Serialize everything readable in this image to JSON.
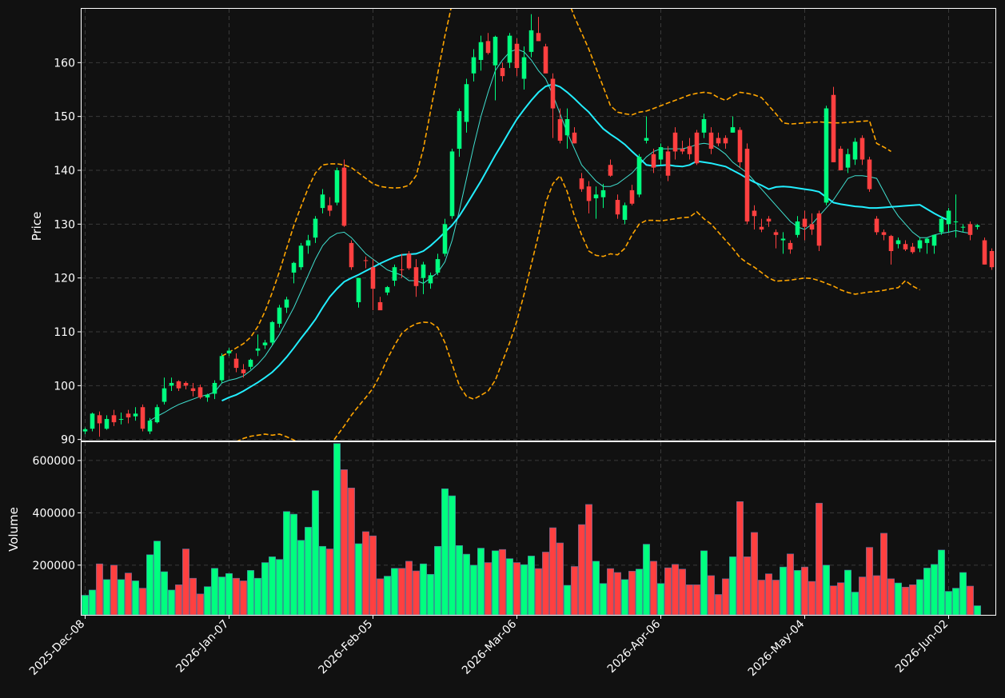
{
  "chart_data": {
    "type": "candlestick",
    "theme": {
      "background": "#111111",
      "up_color": "#00ff7f",
      "down_color": "#ff4040",
      "ma_short_color": "#40e0d0",
      "ma_long_color": "#22eeff",
      "band_color": "#ffa500",
      "grid": true
    },
    "price_panel": {
      "ylabel": "Price",
      "ylim": [
        89.8,
        170
      ],
      "yticks": [
        90,
        100,
        110,
        120,
        130,
        140,
        150,
        160
      ]
    },
    "volume_panel": {
      "ylabel": "Volume",
      "ylim": [
        10000,
        670000
      ],
      "yticks": [
        200000,
        400000,
        600000
      ]
    },
    "xticks": [
      {
        "label": "2025-Dec-08",
        "bar": 0
      },
      {
        "label": "2026-Jan-07",
        "bar": 20
      },
      {
        "label": "2026-Feb-05",
        "bar": 40
      },
      {
        "label": "2026-Mar-06",
        "bar": 60
      },
      {
        "label": "2026-Apr-06",
        "bar": 80
      },
      {
        "label": "2026-May-04",
        "bar": 100
      },
      {
        "label": "2026-Jun-02",
        "bar": 120
      }
    ],
    "ohlc": [
      [
        91.5,
        92.2,
        91.0,
        91.9
      ],
      [
        92.0,
        95.0,
        91.5,
        94.8
      ],
      [
        94.5,
        95.2,
        90.5,
        93.0
      ],
      [
        92.0,
        94.5,
        91.8,
        93.8
      ],
      [
        94.5,
        95.5,
        92.5,
        93.2
      ],
      [
        93.8,
        95.0,
        92.8,
        93.8
      ],
      [
        94.8,
        95.5,
        93.0,
        94.1
      ],
      [
        94.3,
        96.0,
        93.5,
        94.8
      ],
      [
        96.0,
        96.5,
        91.5,
        92.0
      ],
      [
        91.5,
        94.0,
        91.0,
        93.5
      ],
      [
        93.2,
        96.5,
        93.0,
        96.0
      ],
      [
        97.0,
        101.5,
        96.5,
        99.5
      ],
      [
        100.0,
        101.5,
        99.0,
        100.5
      ],
      [
        100.8,
        101.0,
        99.0,
        99.5
      ],
      [
        100.5,
        100.8,
        99.3,
        100.0
      ],
      [
        99.5,
        100.5,
        98.0,
        99.0
      ],
      [
        99.7,
        100.2,
        97.5,
        97.8
      ],
      [
        97.8,
        98.5,
        97.0,
        98.3
      ],
      [
        98.5,
        101.0,
        97.5,
        100.5
      ],
      [
        101.0,
        106.0,
        100.5,
        105.5
      ],
      [
        106.0,
        107.0,
        105.5,
        106.5
      ],
      [
        105.0,
        106.0,
        102.5,
        103.3
      ],
      [
        103.0,
        104.0,
        101.5,
        102.3
      ],
      [
        103.5,
        105.0,
        103.0,
        104.8
      ],
      [
        106.5,
        109.5,
        105.5,
        106.9
      ],
      [
        107.5,
        108.5,
        106.8,
        108.0
      ],
      [
        108.0,
        112.0,
        107.5,
        111.8
      ],
      [
        111.5,
        115.0,
        110.8,
        114.5
      ],
      [
        114.5,
        116.5,
        113.5,
        116.0
      ],
      [
        121.0,
        123.0,
        119.0,
        122.8
      ],
      [
        122.0,
        126.5,
        121.5,
        126.0
      ],
      [
        126.0,
        128.0,
        124.5,
        127.0
      ],
      [
        127.5,
        131.5,
        126.5,
        131.0
      ],
      [
        133.0,
        136.5,
        132.0,
        135.5
      ],
      [
        133.5,
        135.0,
        131.5,
        132.5
      ],
      [
        134.0,
        140.5,
        133.5,
        140.0
      ],
      [
        140.5,
        142.0,
        129.5,
        129.7
      ],
      [
        126.5,
        127.0,
        121.5,
        122.0
      ],
      [
        115.5,
        120.0,
        114.5,
        120.0
      ],
      [
        123.3,
        124.0,
        121.8,
        123.2
      ],
      [
        122.0,
        123.5,
        114.0,
        118.0
      ],
      [
        115.5,
        116.5,
        114.0,
        114.0
      ],
      [
        117.3,
        118.5,
        116.8,
        118.3
      ],
      [
        119.5,
        122.5,
        118.5,
        122.0
      ],
      [
        121.6,
        124.5,
        120.0,
        121.5
      ],
      [
        124.5,
        125.0,
        121.5,
        121.8
      ],
      [
        122.0,
        123.5,
        116.5,
        118.5
      ],
      [
        120.0,
        123.0,
        117.0,
        122.5
      ],
      [
        119.0,
        121.0,
        118.0,
        120.5
      ],
      [
        121.0,
        124.5,
        120.5,
        123.5
      ],
      [
        124.5,
        131.0,
        124.0,
        130.0
      ],
      [
        131.5,
        144.0,
        131.0,
        143.5
      ],
      [
        144.0,
        151.5,
        142.5,
        151.0
      ],
      [
        149.0,
        157.0,
        147.0,
        156.0
      ],
      [
        158.0,
        162.5,
        156.5,
        161.0
      ],
      [
        160.5,
        165.0,
        158.5,
        163.8
      ],
      [
        164.0,
        165.5,
        161.5,
        161.8
      ],
      [
        159.5,
        165.0,
        153.0,
        164.8
      ],
      [
        159.0,
        160.0,
        156.5,
        157.5
      ],
      [
        160.0,
        165.5,
        159.0,
        165.0
      ],
      [
        163.5,
        164.5,
        157.5,
        159.0
      ],
      [
        157.0,
        163.0,
        155.0,
        161.0
      ],
      [
        162.0,
        169.0,
        161.0,
        166.0
      ],
      [
        165.5,
        168.5,
        164.0,
        164.0
      ],
      [
        163.0,
        163.5,
        158.0,
        158.0
      ],
      [
        157.0,
        158.0,
        146.0,
        151.5
      ],
      [
        149.5,
        151.5,
        145.0,
        145.5
      ],
      [
        146.5,
        151.5,
        144.0,
        149.5
      ],
      [
        147.0,
        148.0,
        145.0,
        145.0
      ],
      [
        138.5,
        139.5,
        136.0,
        136.5
      ],
      [
        137.0,
        138.0,
        132.0,
        134.3
      ],
      [
        134.8,
        137.0,
        131.0,
        135.5
      ],
      [
        135.0,
        137.5,
        133.0,
        136.3
      ],
      [
        141.0,
        142.0,
        138.8,
        139.0
      ],
      [
        134.5,
        135.5,
        131.0,
        131.8
      ],
      [
        130.8,
        134.0,
        130.0,
        133.5
      ],
      [
        136.3,
        137.3,
        133.5,
        133.8
      ],
      [
        135.5,
        143.0,
        135.0,
        142.5
      ],
      [
        145.5,
        150.0,
        145.0,
        146.0
      ],
      [
        143.0,
        144.0,
        139.5,
        140.5
      ],
      [
        142.0,
        145.0,
        141.0,
        144.3
      ],
      [
        143.5,
        144.5,
        138.0,
        139.0
      ],
      [
        147.0,
        148.0,
        142.0,
        143.5
      ],
      [
        144.0,
        145.5,
        143.0,
        143.5
      ],
      [
        144.5,
        146.0,
        142.0,
        143.0
      ],
      [
        147.0,
        147.5,
        141.0,
        141.3
      ],
      [
        147.0,
        150.5,
        146.0,
        149.5
      ],
      [
        147.0,
        148.0,
        143.0,
        144.0
      ],
      [
        146.0,
        147.0,
        144.5,
        145.0
      ],
      [
        146.0,
        146.5,
        144.0,
        145.0
      ],
      [
        147.0,
        150.0,
        147.0,
        148.0
      ],
      [
        147.5,
        148.0,
        140.5,
        141.5
      ],
      [
        144.0,
        145.0,
        130.0,
        130.5
      ],
      [
        132.5,
        133.5,
        129.0,
        131.5
      ],
      [
        129.5,
        131.0,
        128.5,
        129.0
      ],
      [
        131.0,
        131.5,
        129.5,
        130.5
      ],
      [
        128.5,
        129.0,
        125.5,
        128.0
      ],
      [
        127.0,
        128.5,
        124.5,
        127.3
      ],
      [
        126.5,
        127.0,
        124.5,
        125.3
      ],
      [
        128.0,
        131.5,
        127.5,
        130.5
      ],
      [
        131.0,
        132.5,
        127.0,
        129.5
      ],
      [
        130.0,
        132.0,
        128.0,
        129.0
      ],
      [
        132.0,
        132.5,
        125.0,
        126.0
      ],
      [
        134.0,
        152.0,
        133.5,
        151.5
      ],
      [
        154.0,
        155.5,
        141.5,
        141.5
      ],
      [
        144.0,
        144.5,
        140.0,
        140.0
      ],
      [
        140.5,
        144.0,
        139.5,
        143.0
      ],
      [
        142.0,
        146.0,
        141.0,
        145.3
      ],
      [
        146.0,
        146.5,
        141.0,
        142.0
      ],
      [
        142.0,
        142.5,
        136.0,
        136.5
      ],
      [
        131.0,
        131.5,
        128.0,
        128.5
      ],
      [
        128.5,
        129.0,
        127.0,
        128.0
      ],
      [
        127.8,
        128.0,
        122.5,
        125.0
      ],
      [
        126.3,
        127.5,
        125.5,
        127.0
      ],
      [
        126.3,
        127.0,
        125.0,
        125.3
      ],
      [
        125.8,
        126.5,
        124.5,
        124.8
      ],
      [
        125.5,
        127.5,
        124.8,
        127.0
      ],
      [
        126.5,
        127.5,
        124.5,
        127.3
      ],
      [
        126.0,
        128.0,
        124.5,
        128.0
      ],
      [
        128.5,
        131.5,
        128.0,
        131.0
      ],
      [
        130.0,
        133.0,
        128.5,
        132.5
      ],
      [
        130.5,
        135.5,
        127.5,
        130.5
      ],
      [
        129.5,
        130.0,
        128.5,
        129.5
      ],
      [
        130.0,
        130.5,
        127.0,
        128.0
      ],
      [
        129.5,
        130.0,
        129.0,
        129.8
      ],
      [
        127.0,
        127.5,
        122.5,
        122.5
      ],
      [
        125.0,
        125.5,
        121.5,
        122.0
      ]
    ],
    "volume": [
      85000,
      105000,
      205000,
      145000,
      200000,
      145000,
      170000,
      140000,
      112000,
      240000,
      292000,
      175000,
      105000,
      125000,
      262000,
      150000,
      90000,
      118000,
      188000,
      155000,
      168000,
      150000,
      140000,
      180000,
      150000,
      210000,
      232000,
      222000,
      405000,
      395000,
      295000,
      345000,
      485000,
      272000,
      262000,
      665000,
      565000,
      495000,
      282000,
      328000,
      312000,
      148000,
      158000,
      188000,
      188000,
      215000,
      178000,
      205000,
      165000,
      272000,
      492000,
      465000,
      275000,
      242000,
      200000,
      265000,
      210000,
      255000,
      260000,
      225000,
      210000,
      202000,
      235000,
      187000,
      250000,
      343000,
      285000,
      123000,
      195000,
      355000,
      432000,
      215000,
      130000,
      187000,
      172000,
      145000,
      177000,
      185000,
      280000,
      215000,
      130000,
      190000,
      203000,
      185000,
      125000,
      125000,
      255000,
      160000,
      88000,
      148000,
      232000,
      443000,
      232000,
      325000,
      143000,
      167000,
      143000,
      193000,
      243000,
      180000,
      193000,
      138000,
      437000,
      200000,
      121000,
      133000,
      181000,
      97000,
      155000,
      268000,
      160000,
      322000,
      148000,
      132000,
      116000,
      125000,
      145000,
      189000,
      203000,
      258000,
      100000,
      112000,
      172000,
      120000,
      45000
    ],
    "ma_short": [
      null,
      null,
      null,
      null,
      null,
      null,
      null,
      null,
      null,
      93.5,
      94.3,
      95.0,
      95.8,
      96.5,
      97.0,
      97.5,
      98.0,
      98.3,
      98.8,
      100.5,
      101.0,
      101.3,
      101.8,
      102.8,
      104.0,
      105.5,
      107.5,
      109.5,
      112.0,
      114.5,
      117.5,
      120.5,
      123.5,
      126.0,
      127.5,
      128.3,
      128.5,
      127.5,
      126.0,
      124.5,
      123.5,
      122.5,
      121.5,
      121.0,
      120.5,
      119.5,
      119.5,
      119.0,
      120.0,
      121.0,
      123.0,
      127.0,
      132.5,
      138.5,
      144.5,
      150.0,
      154.5,
      158.5,
      160.5,
      162.0,
      162.5,
      162.0,
      160.5,
      158.5,
      157.0,
      154.0,
      150.5,
      147.0,
      144.0,
      141.0,
      139.5,
      138.0,
      137.0,
      137.0,
      137.5,
      138.5,
      139.5,
      141.0,
      142.5,
      143.5,
      144.0,
      144.0,
      144.0,
      144.0,
      144.3,
      144.8,
      145.0,
      144.8,
      144.0,
      143.0,
      141.5,
      140.5,
      139.5,
      138.0,
      136.5,
      135.0,
      133.5,
      132.0,
      130.5,
      129.5,
      129.0,
      130.0,
      131.5,
      133.0,
      134.5,
      136.5,
      138.5,
      139.0,
      139.0,
      138.8,
      138.5,
      136.0,
      133.5,
      131.5,
      130.0,
      128.5,
      127.5,
      127.5,
      128.0,
      128.3,
      128.5,
      128.8,
      128.5,
      128.3
    ],
    "ma_long": [
      null,
      null,
      null,
      null,
      null,
      null,
      null,
      null,
      null,
      null,
      null,
      null,
      null,
      null,
      null,
      null,
      null,
      null,
      null,
      97.2,
      97.8,
      98.3,
      99.0,
      99.8,
      100.6,
      101.5,
      102.5,
      103.8,
      105.3,
      107.0,
      108.8,
      110.5,
      112.3,
      114.5,
      116.5,
      118.0,
      119.3,
      120.0,
      120.6,
      121.3,
      122.0,
      122.7,
      123.3,
      123.9,
      124.3,
      124.4,
      124.5,
      125.0,
      126.0,
      127.2,
      128.5,
      129.8,
      131.5,
      133.6,
      135.8,
      138.0,
      140.4,
      142.8,
      145.0,
      147.3,
      149.5,
      151.3,
      153.0,
      154.5,
      155.6,
      156.0,
      155.5,
      154.5,
      153.3,
      152.0,
      150.8,
      149.2,
      147.7,
      146.7,
      145.8,
      144.8,
      143.5,
      142.3,
      141.0,
      140.8,
      140.9,
      141.0,
      140.8,
      140.7,
      141.0,
      141.7,
      141.5,
      141.3,
      141.0,
      140.7,
      140.0,
      139.3,
      138.5,
      137.8,
      137.2,
      136.5,
      136.9,
      137.0,
      136.9,
      136.7,
      136.5,
      136.3,
      136.0,
      135.0,
      134.0,
      133.7,
      133.5,
      133.3,
      133.2,
      133.0,
      133.0,
      133.1,
      133.2,
      133.3,
      133.4,
      133.5,
      133.6,
      132.8,
      132.0,
      131.3,
      130.7
    ],
    "band_upper": [
      null,
      null,
      null,
      null,
      null,
      null,
      null,
      null,
      null,
      null,
      null,
      null,
      null,
      null,
      null,
      null,
      null,
      null,
      null,
      105.5,
      106.2,
      107.0,
      107.8,
      109.0,
      111.0,
      113.8,
      117.3,
      121.2,
      125.5,
      129.7,
      133.3,
      136.7,
      139.5,
      141.0,
      141.2,
      141.2,
      141.0,
      140.5,
      139.5,
      138.5,
      137.5,
      137.0,
      136.8,
      136.7,
      136.8,
      137.2,
      139.0,
      144.0,
      151.0,
      158.0,
      165.0,
      171.0,
      176.0,
      180.0,
      183.0,
      186.0,
      188.5,
      190.5,
      191.5,
      192.0,
      191.5,
      190.0,
      188.0,
      185.5,
      182.5,
      179.0,
      175.5,
      172.0,
      168.5,
      165.5,
      162.5,
      159.0,
      155.5,
      152.0,
      150.8,
      150.5,
      150.3,
      150.8,
      151.0,
      151.5,
      152.0,
      152.5,
      153.0,
      153.5,
      154.0,
      154.3,
      154.5,
      154.3,
      153.5,
      153.0,
      153.8,
      154.5,
      154.3,
      154.0,
      153.5,
      152.0,
      150.5,
      148.8,
      148.6,
      148.7,
      148.8,
      148.9,
      149.0,
      148.9,
      148.8,
      148.8,
      148.9,
      149.0,
      149.1,
      149.2,
      145.0,
      144.3,
      143.5
    ],
    "band_lower": [
      null,
      null,
      null,
      null,
      null,
      null,
      null,
      null,
      null,
      null,
      null,
      null,
      null,
      null,
      null,
      null,
      null,
      null,
      null,
      89.0,
      89.3,
      89.6,
      90.2,
      90.6,
      90.8,
      91.0,
      90.8,
      91.0,
      90.5,
      89.9,
      89.0,
      88.4,
      87.9,
      88.0,
      88.8,
      90.7,
      92.5,
      94.5,
      96.2,
      97.8,
      99.5,
      102.0,
      105.0,
      107.5,
      109.7,
      110.8,
      111.5,
      111.8,
      111.7,
      110.8,
      108.0,
      104.0,
      100.0,
      98.0,
      97.5,
      98.2,
      99.0,
      101.0,
      104.5,
      108.0,
      112.0,
      117.0,
      122.5,
      128.0,
      134.0,
      137.5,
      139.0,
      136.0,
      131.5,
      128.0,
      125.0,
      124.2,
      124.0,
      124.5,
      124.3,
      125.5,
      128.0,
      130.0,
      130.7,
      130.7,
      130.6,
      130.8,
      131.0,
      131.2,
      131.3,
      132.3,
      131.0,
      130.0,
      128.5,
      127.0,
      125.5,
      123.8,
      122.8,
      122.0,
      121.0,
      120.0,
      119.4,
      119.5,
      119.6,
      119.8,
      120.0,
      119.9,
      119.5,
      119.0,
      118.5,
      117.8,
      117.3,
      117.0,
      117.2,
      117.4,
      117.5,
      117.7,
      118.0,
      118.2,
      119.5,
      118.5,
      117.8
    ]
  }
}
